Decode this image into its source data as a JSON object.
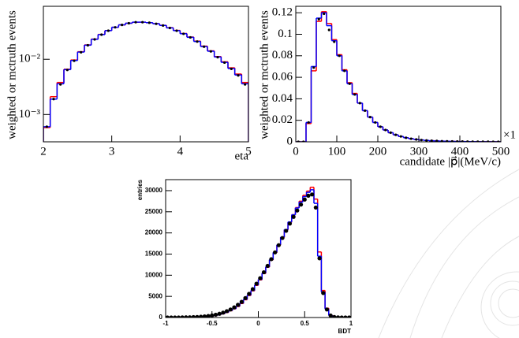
{
  "chart_data": [
    {
      "type": "histogram",
      "x_label": "eta",
      "y_label": "weighted or mctruth events",
      "log_y": true,
      "xlim": [
        2,
        5
      ],
      "xticks": [
        2,
        3,
        4,
        5
      ],
      "ylim": [
        0.00032,
        0.091
      ],
      "yticks": [
        {
          "value": 0.001,
          "label": "10⁻³"
        },
        {
          "value": 0.01,
          "label": "10⁻²"
        }
      ],
      "bins": [
        2,
        2.1,
        2.2,
        2.3,
        2.4,
        2.5,
        2.6,
        2.7,
        2.8,
        2.9,
        3,
        3.1,
        3.2,
        3.3,
        3.4,
        3.5,
        3.6,
        3.7,
        3.8,
        3.9,
        4,
        4.1,
        4.2,
        4.3,
        4.4,
        4.5,
        4.6,
        4.7,
        4.8,
        4.9,
        5
      ],
      "series": [
        {
          "color": "#ff0000",
          "style": "step",
          "values": [
            0.00058,
            0.0021,
            0.0038,
            0.0066,
            0.0097,
            0.0137,
            0.0182,
            0.0232,
            0.0282,
            0.0331,
            0.0379,
            0.0419,
            0.0449,
            0.0468,
            0.0469,
            0.0459,
            0.0441,
            0.0412,
            0.0373,
            0.0333,
            0.0293,
            0.0253,
            0.0213,
            0.0173,
            0.0142,
            0.0112,
            0.009,
            0.007,
            0.0054,
            0.0038
          ]
        },
        {
          "color": "#0000ff",
          "style": "step",
          "values": [
            0.0006,
            0.0019,
            0.0036,
            0.0065,
            0.0095,
            0.0135,
            0.018,
            0.023,
            0.028,
            0.033,
            0.038,
            0.042,
            0.045,
            0.047,
            0.047,
            0.046,
            0.044,
            0.041,
            0.037,
            0.033,
            0.029,
            0.025,
            0.021,
            0.017,
            0.014,
            0.011,
            0.0088,
            0.0068,
            0.0052,
            0.0036
          ]
        },
        {
          "color": "#000000",
          "style": "points",
          "values": [
            0.0006,
            0.0019,
            0.0035,
            0.0064,
            0.0094,
            0.0134,
            0.0179,
            0.0229,
            0.0279,
            0.0329,
            0.0379,
            0.0419,
            0.0449,
            0.0469,
            0.0469,
            0.0459,
            0.0439,
            0.0409,
            0.0369,
            0.0329,
            0.0289,
            0.0249,
            0.0209,
            0.0169,
            0.0139,
            0.0109,
            0.0087,
            0.0067,
            0.0051,
            0.0035
          ]
        }
      ]
    },
    {
      "type": "histogram",
      "x_label": "candidate |p⃗|(MeV/c)",
      "y_label": "weighted or mctruth events",
      "annotation": "×1",
      "xlim": [
        0,
        500
      ],
      "xticks": [
        0,
        100,
        200,
        300,
        400,
        500
      ],
      "ylim": [
        0,
        0.126
      ],
      "yticks": [
        0,
        0.02,
        0.04,
        0.06,
        0.08,
        0.1,
        0.12
      ],
      "bins": [
        0,
        12.5,
        25,
        37.5,
        50,
        62.5,
        75,
        87.5,
        100,
        112.5,
        125,
        137.5,
        150,
        162.5,
        175,
        187.5,
        200,
        212.5,
        225,
        237.5,
        250,
        262.5,
        275,
        287.5,
        300,
        312.5,
        325,
        337.5,
        350,
        362.5,
        375,
        387.5,
        400,
        412.5,
        425,
        437.5,
        450,
        462.5,
        475,
        487.5,
        500
      ],
      "series": [
        {
          "color": "#ff0000",
          "style": "step",
          "values": [
            0,
            0,
            0.017,
            0.066,
            0.112,
            0.121,
            0.11,
            0.095,
            0.081,
            0.067,
            0.055,
            0.045,
            0.036,
            0.029,
            0.023,
            0.018,
            0.014,
            0.011,
            0.0085,
            0.0065,
            0.005,
            0.0038,
            0.0029,
            0.0022,
            0.0017,
            0.0013,
            0.001,
            0.0008,
            0.0006,
            0.0005,
            0.0004,
            0.0003,
            0.00025,
            0.0002,
            0.00015,
            0.00012,
            0.0001,
            8e-05,
            6e-05,
            5e-05
          ]
        },
        {
          "color": "#0000ff",
          "style": "step",
          "values": [
            0,
            0,
            0.018,
            0.07,
            0.115,
            0.12,
            0.108,
            0.094,
            0.08,
            0.066,
            0.054,
            0.044,
            0.036,
            0.029,
            0.023,
            0.018,
            0.014,
            0.011,
            0.0085,
            0.0065,
            0.005,
            0.0038,
            0.0029,
            0.0022,
            0.0017,
            0.0013,
            0.001,
            0.0008,
            0.0006,
            0.0005,
            0.0004,
            0.0003,
            0.00025,
            0.0002,
            0.00015,
            0.00012,
            0.0001,
            8e-05,
            6e-05,
            5e-05
          ]
        },
        {
          "color": "#000000",
          "style": "points",
          "values": [
            0,
            0,
            0.018,
            0.069,
            0.114,
            0.119,
            0.104,
            0.093,
            0.08,
            0.066,
            0.054,
            0.044,
            0.036,
            0.029,
            0.023,
            0.018,
            0.014,
            0.011,
            0.0085,
            0.0065,
            0.005,
            0.0038,
            0.0029,
            0.0022,
            0.0017,
            0.0013,
            0.001,
            0.0008,
            0.0006,
            0.0005,
            0.0004,
            0.0003,
            0.00025,
            0.0002,
            0.00015,
            0.00012,
            0.0001,
            8e-05,
            6e-05,
            5e-05
          ]
        }
      ]
    },
    {
      "type": "histogram",
      "x_label": "BDT",
      "y_label": "entries",
      "xlim": [
        -1,
        1
      ],
      "xticks": [
        -1,
        -0.5,
        0,
        0.5,
        1
      ],
      "ylim": [
        0,
        32600
      ],
      "yticks": [
        0,
        5000,
        10000,
        15000,
        20000,
        25000,
        30000
      ],
      "bins": [
        -1,
        -0.96,
        -0.92,
        -0.88,
        -0.84,
        -0.8,
        -0.76,
        -0.72,
        -0.68,
        -0.64,
        -0.6,
        -0.56,
        -0.52,
        -0.48,
        -0.44,
        -0.4,
        -0.36,
        -0.32,
        -0.28,
        -0.24,
        -0.2,
        -0.16,
        -0.12,
        -0.08,
        -0.04,
        0,
        0.04,
        0.08,
        0.12,
        0.16,
        0.2,
        0.24,
        0.28,
        0.32,
        0.36,
        0.4,
        0.44,
        0.48,
        0.52,
        0.56,
        0.6,
        0.64,
        0.68,
        0.72,
        0.76,
        0.8,
        0.84,
        0.88,
        0.92,
        0.96,
        1
      ],
      "series": [
        {
          "color": "#ff0000",
          "style": "step",
          "values": [
            0,
            0,
            0,
            0,
            0,
            10,
            20,
            40,
            60,
            100,
            150,
            230,
            340,
            480,
            670,
            900,
            1200,
            1600,
            2050,
            2600,
            3300,
            4200,
            5200,
            6300,
            7600,
            8900,
            10400,
            11900,
            13600,
            15300,
            17100,
            18900,
            20700,
            22500,
            24300,
            26000,
            27500,
            28900,
            29900,
            30800,
            28000,
            15500,
            6400,
            2200,
            550,
            130,
            30,
            0,
            0,
            0
          ]
        },
        {
          "color": "#0000ff",
          "style": "step",
          "values": [
            0,
            0,
            0,
            0,
            0,
            10,
            20,
            40,
            70,
            110,
            170,
            250,
            360,
            500,
            700,
            950,
            1250,
            1650,
            2100,
            2700,
            3400,
            4300,
            5300,
            6400,
            7700,
            9000,
            10500,
            12000,
            13700,
            15400,
            17200,
            19000,
            20800,
            22600,
            24300,
            25900,
            27300,
            28600,
            29600,
            30200,
            27000,
            14500,
            6000,
            2000,
            500,
            120,
            30,
            0,
            0,
            0
          ]
        },
        {
          "color": "#000000",
          "style": "points",
          "values": [
            0,
            0,
            0,
            10,
            20,
            40,
            60,
            90,
            130,
            180,
            260,
            360,
            490,
            660,
            880,
            1150,
            1500,
            1900,
            2400,
            3000,
            3700,
            4600,
            5600,
            6700,
            8000,
            9300,
            10700,
            12200,
            13800,
            15400,
            17100,
            18800,
            20500,
            22200,
            23800,
            25300,
            26700,
            27900,
            28800,
            29100,
            26000,
            14000,
            5800,
            1900,
            480,
            110,
            20,
            0,
            0,
            0
          ]
        }
      ]
    }
  ]
}
